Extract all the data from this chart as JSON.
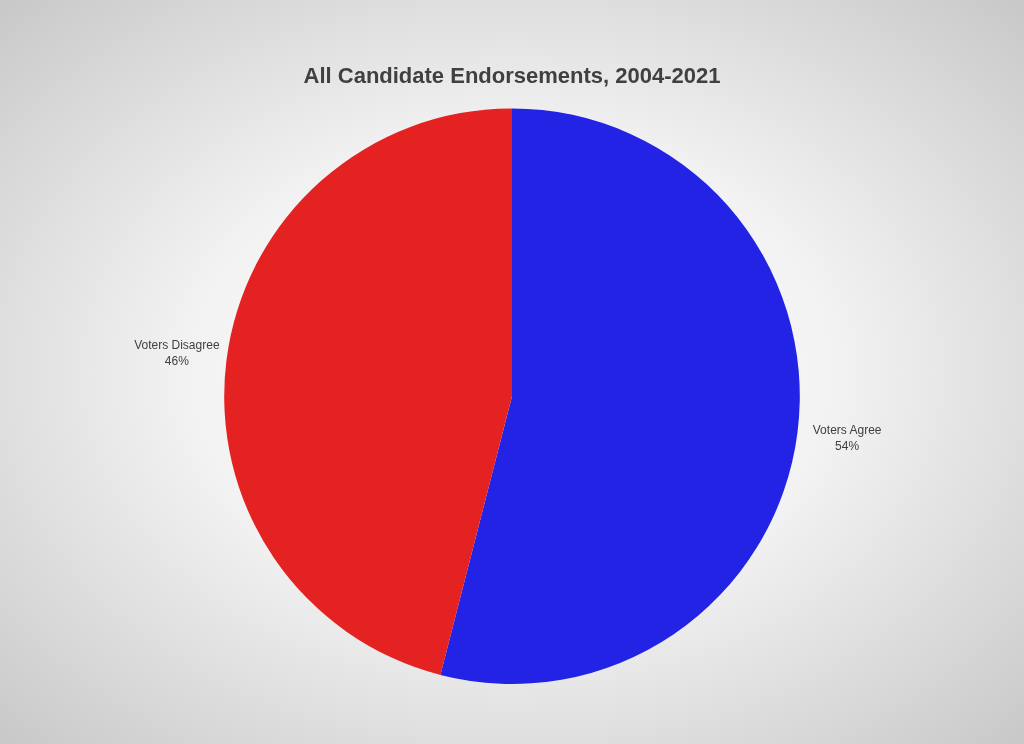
{
  "chart_data": {
    "type": "pie",
    "title": "All Candidate Endorsements, 2004-2021",
    "categories": [
      "Voters Agree",
      "Voters Disagree"
    ],
    "values": [
      54,
      46
    ],
    "colors": [
      "#2323e6",
      "#e52222"
    ],
    "value_labels": [
      "54%",
      "46%"
    ],
    "legend": false
  }
}
